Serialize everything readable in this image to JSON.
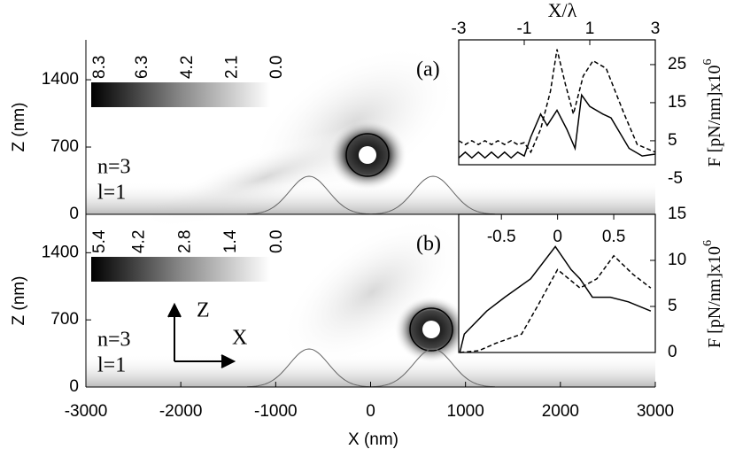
{
  "chart_data": [
    {
      "type": "heatmap",
      "panel_label": "(a)",
      "annotations": [
        "n=3",
        "l=1"
      ],
      "ylabel": "Z (nm)",
      "xlim": [
        -3000,
        3000
      ],
      "ylim": [
        0,
        1815
      ],
      "yticks": [
        0,
        700,
        1400
      ],
      "colorbar": {
        "clim": [
          0,
          8.3
        ],
        "ticks": [
          8.3,
          6.3,
          4.2,
          2.1,
          {
            "value": 0,
            "label": "0.0"
          }
        ]
      }
    },
    {
      "type": "line",
      "xlabel": "X/λ",
      "ylabel": "F [pN/nm]x10",
      "ylabel_exponent": "6",
      "xlim": [
        -3,
        3
      ],
      "ylim": [
        -1.3,
        31.5
      ],
      "xticks": [
        -3,
        -1,
        1,
        3
      ],
      "yticks": [
        25,
        15,
        5,
        -5
      ],
      "series": [
        {
          "color": "#000000",
          "dashed": false,
          "x": [
            -3,
            -2.8,
            -2.6,
            -2.4,
            -2.2,
            -2,
            -1.8,
            -1.6,
            -1.4,
            -1.2,
            -1,
            -0.8,
            -0.5,
            -0.3,
            0,
            0.3,
            0.55,
            0.75,
            1.0,
            1.4,
            1.65,
            2.2,
            2.6,
            3
          ],
          "values": [
            0.5,
            2,
            0.5,
            2,
            0.5,
            2,
            0.5,
            2,
            0.5,
            2,
            1,
            6,
            12,
            9,
            13,
            8,
            3,
            17,
            14,
            12,
            11,
            3,
            1,
            1.5
          ]
        },
        {
          "color": "#000000",
          "dashed": true,
          "x": [
            -3,
            -2.8,
            -2.6,
            -2.4,
            -2.2,
            -2,
            -1.8,
            -1.6,
            -1.4,
            -1.2,
            -1,
            -0.8,
            -0.5,
            -0.2,
            0,
            0.25,
            0.5,
            0.8,
            1.1,
            1.5,
            2.05,
            2.45,
            3
          ],
          "values": [
            5,
            4,
            5,
            4,
            5,
            4,
            5,
            4,
            5,
            4,
            4.5,
            2,
            8,
            18,
            29,
            20,
            12,
            22,
            26,
            24,
            12,
            4,
            2
          ]
        }
      ]
    },
    {
      "type": "heatmap",
      "panel_label": "(b)",
      "annotations": [
        "n=3",
        "l=1"
      ],
      "arrow_labels": [
        "Z",
        "X"
      ],
      "ylabel": "Z (nm)",
      "xlabel": "X (nm)",
      "xlim": [
        -3000,
        3000
      ],
      "ylim": [
        0,
        1800
      ],
      "yticks": [
        0,
        700,
        1400
      ],
      "xticks": [
        -3000,
        -2000,
        -1000,
        0,
        1000,
        2000,
        3000
      ],
      "colorbar": {
        "clim": [
          0,
          5.4
        ],
        "ticks": [
          5.4,
          4.2,
          2.8,
          1.4,
          {
            "value": 0,
            "label": "0.0"
          }
        ]
      }
    },
    {
      "type": "line",
      "ylabel": "F [pN/nm]x10",
      "ylabel_exponent": "6",
      "xlim": [
        -0.88,
        0.87
      ],
      "ylim": [
        0,
        15
      ],
      "xticks": [
        -0.5,
        0,
        0.5
      ],
      "yticks": [
        15,
        10,
        5,
        0
      ],
      "series": [
        {
          "color": "#000000",
          "dashed": false,
          "x": [
            -0.87,
            -0.83,
            -0.63,
            -0.47,
            -0.24,
            -0.02,
            0.12,
            0.2,
            0.31,
            0.47,
            0.63,
            0.83
          ],
          "values": [
            0,
            2,
            4.5,
            6,
            8,
            11.5,
            9,
            8,
            6,
            6,
            5.5,
            4.5
          ]
        },
        {
          "color": "#000000",
          "dashed": true,
          "x": [
            -0.87,
            -0.7,
            -0.55,
            -0.32,
            -0.18,
            0,
            0.2,
            0.35,
            0.5,
            0.67,
            0.83
          ],
          "values": [
            0,
            0.2,
            1,
            2,
            5,
            9,
            7,
            8,
            10.5,
            8.5,
            7
          ]
        }
      ]
    }
  ]
}
